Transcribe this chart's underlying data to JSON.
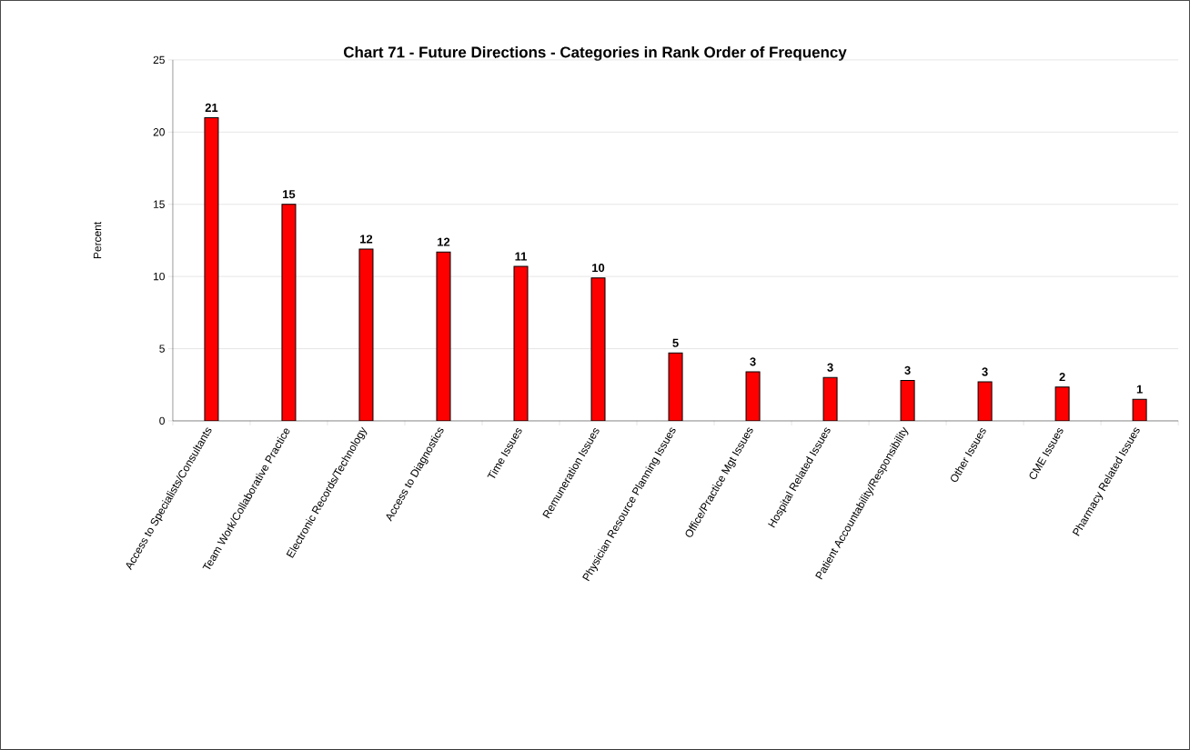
{
  "chart_data": {
    "type": "bar",
    "title": "Chart 71 - Future Directions - Categories in Rank Order of Frequency",
    "ylabel": "Percent",
    "categories": [
      "Access to Specialists/Consultants",
      "Team Work/Collaborative Practice",
      "Electronic Records/Technology",
      "Access to Diagnostics",
      "Time Issues",
      "Remuneration Issues",
      "Physician Resource Planning Issues",
      "Office/Practice Mgt Issues",
      "Hospital Related Issues",
      "Patient Accountability/Responsibility",
      "Other Issues",
      "CME Issues",
      "Pharmacy Related Issues"
    ],
    "values": [
      21,
      15,
      11.9,
      11.7,
      10.7,
      9.9,
      4.7,
      3.4,
      3,
      2.8,
      2.7,
      2.35,
      1.5
    ],
    "value_labels": [
      "21",
      "15",
      "12",
      "12",
      "11",
      "10",
      "5",
      "3",
      "3",
      "3",
      "3",
      "2",
      "1"
    ],
    "color": "#ff0000",
    "ylim": [
      0,
      25
    ],
    "yticks": [
      0,
      5,
      10,
      15,
      20,
      25
    ],
    "grid": "y"
  }
}
